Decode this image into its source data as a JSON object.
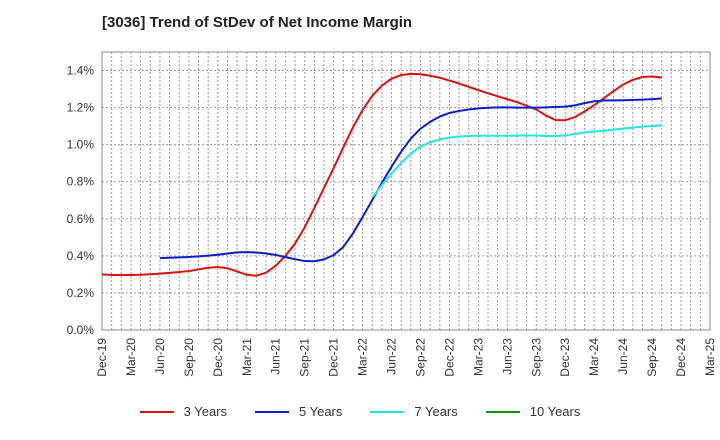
{
  "chart_data": {
    "type": "line",
    "title": "[3036]  Trend of StDev of Net Income Margin",
    "xlabel": "",
    "ylabel": "",
    "ylim": [
      0,
      1.5
    ],
    "y_ticks": [
      "0.0%",
      "0.2%",
      "0.4%",
      "0.6%",
      "0.8%",
      "1.0%",
      "1.2%",
      "1.4%"
    ],
    "y_tick_values": [
      0,
      0.2,
      0.4,
      0.6,
      0.8,
      1.0,
      1.2,
      1.4
    ],
    "x_ticks": [
      "Dec-19",
      "Mar-20",
      "Jun-20",
      "Sep-20",
      "Dec-20",
      "Mar-21",
      "Jun-21",
      "Sep-21",
      "Dec-21",
      "Mar-22",
      "Jun-22",
      "Sep-22",
      "Dec-22",
      "Mar-23",
      "Jun-23",
      "Sep-23",
      "Dec-23",
      "Mar-24",
      "Jun-24",
      "Sep-24",
      "Dec-24",
      "Mar-25"
    ],
    "grid": true,
    "legend_position": "bottom",
    "series": [
      {
        "name": "3 Years",
        "color": "#dd1111",
        "values": [
          0.3,
          0.297,
          0.297,
          0.297,
          0.298,
          0.301,
          0.304,
          0.308,
          0.313,
          0.318,
          0.327,
          0.336,
          0.34,
          0.333,
          0.316,
          0.298,
          0.293,
          0.309,
          0.347,
          0.399,
          0.466,
          0.554,
          0.658,
          0.766,
          0.874,
          0.985,
          1.093,
          1.187,
          1.263,
          1.319,
          1.356,
          1.376,
          1.382,
          1.38,
          1.372,
          1.361,
          1.346,
          1.33,
          1.312,
          1.294,
          1.277,
          1.261,
          1.245,
          1.23,
          1.21,
          1.19,
          1.157,
          1.133,
          1.132,
          1.149,
          1.179,
          1.213,
          1.25,
          1.289,
          1.324,
          1.35,
          1.365,
          1.368,
          1.362
        ]
      },
      {
        "name": "5 Years",
        "color": "#0a1fc8",
        "values": [
          null,
          null,
          null,
          null,
          null,
          null,
          0.388,
          0.39,
          0.392,
          0.394,
          0.397,
          0.401,
          0.406,
          0.413,
          0.419,
          0.42,
          0.418,
          0.413,
          0.405,
          0.393,
          0.382,
          0.372,
          0.371,
          0.381,
          0.404,
          0.448,
          0.521,
          0.61,
          0.701,
          0.794,
          0.881,
          0.962,
          1.033,
          1.086,
          1.123,
          1.152,
          1.171,
          1.182,
          1.19,
          1.196,
          1.199,
          1.201,
          1.201,
          1.2,
          1.2,
          1.2,
          1.201,
          1.203,
          1.205,
          1.212,
          1.224,
          1.234,
          1.238,
          1.239,
          1.24,
          1.241,
          1.243,
          1.246,
          1.249
        ]
      },
      {
        "name": "7 Years",
        "color": "#22e5e5",
        "values": [
          null,
          null,
          null,
          null,
          null,
          null,
          null,
          null,
          null,
          null,
          null,
          null,
          null,
          null,
          null,
          null,
          null,
          null,
          null,
          null,
          null,
          null,
          null,
          null,
          null,
          null,
          null,
          null,
          0.715,
          0.782,
          0.844,
          0.901,
          0.952,
          0.99,
          1.013,
          1.029,
          1.038,
          1.044,
          1.047,
          1.048,
          1.048,
          1.048,
          1.048,
          1.049,
          1.05,
          1.049,
          1.047,
          1.046,
          1.05,
          1.058,
          1.066,
          1.071,
          1.075,
          1.081,
          1.087,
          1.092,
          1.097,
          1.101,
          1.105
        ]
      },
      {
        "name": "10 Years",
        "color": "#1a8f1a",
        "values": []
      }
    ]
  }
}
